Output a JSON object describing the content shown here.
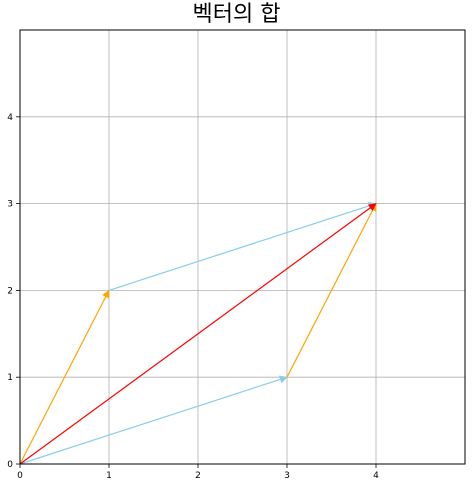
{
  "chart_data": {
    "type": "vector",
    "title": "벡터의 합",
    "xlabel": "",
    "ylabel": "",
    "xlim": [
      0,
      5
    ],
    "ylim": [
      0,
      5
    ],
    "xticks": [
      "0",
      "1",
      "2",
      "3",
      "4"
    ],
    "yticks": [
      "0",
      "1",
      "2",
      "3",
      "4"
    ],
    "grid": true,
    "colors": {
      "a": "#87ceeb",
      "b": "#ffa500",
      "sum": "#ff0000",
      "grid": "#b0b0b0"
    },
    "vectors": [
      {
        "id": "a",
        "from": [
          0,
          0
        ],
        "to": [
          3,
          1
        ],
        "color": "#87ceeb"
      },
      {
        "id": "b",
        "from": [
          0,
          0
        ],
        "to": [
          1,
          2
        ],
        "color": "#ffa500"
      },
      {
        "id": "a",
        "from": [
          1,
          2
        ],
        "to": [
          4,
          3
        ],
        "color": "#87ceeb"
      },
      {
        "id": "b",
        "from": [
          3,
          1
        ],
        "to": [
          4,
          3
        ],
        "color": "#ffa500"
      },
      {
        "id": "sum",
        "from": [
          0,
          0
        ],
        "to": [
          4,
          3
        ],
        "color": "#ff0000"
      }
    ]
  }
}
